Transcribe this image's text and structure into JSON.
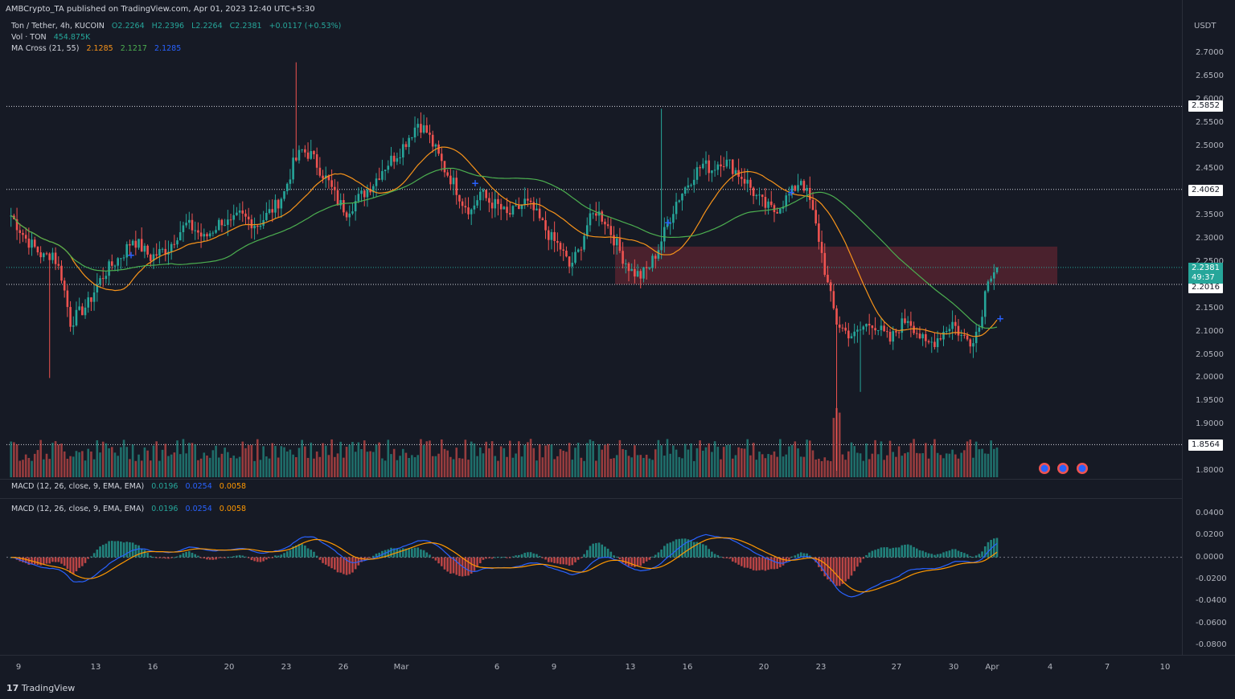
{
  "header": {
    "publisher": "AMBCrypto_TA published on TradingView.com, Apr 01, 2023 12:40 UTC+5:30"
  },
  "legend": {
    "symbol": "Ton / Tether, 4h, KUCOIN",
    "o": "O2.2264",
    "h": "H2.2396",
    "l": "L2.2264",
    "c": "C2.2381",
    "chg": "+0.0117 (+0.53%)",
    "vol_label": "Vol · TON",
    "vol_value": "454.875K",
    "ma_label": "MA Cross (21, 55)",
    "ma_v1": "2.1285",
    "ma_v2": "2.1217",
    "ma_v3": "2.1285",
    "macd_label": "MACD (12, 26, close, 9, EMA, EMA)",
    "macd_v1": "0.0196",
    "macd_v2": "0.0254",
    "macd_v3": "0.0058"
  },
  "axis": {
    "currency": "USDT",
    "price_ticks": [
      "2.7000",
      "2.6500",
      "2.6000",
      "2.5500",
      "2.5000",
      "2.4500",
      "2.3500",
      "2.3000",
      "2.2500",
      "2.1500",
      "2.1000",
      "2.0500",
      "2.0000",
      "1.9500",
      "1.9000",
      "1.8000"
    ],
    "macd_ticks": [
      "0.0400",
      "0.0200",
      "0.0000",
      "-0.0200",
      "-0.0400",
      "-0.0600",
      "-0.0800"
    ],
    "x_ticks": [
      "9",
      "13",
      "16",
      "20",
      "23",
      "26",
      "Mar",
      "6",
      "9",
      "13",
      "16",
      "20",
      "23",
      "27",
      "30",
      "Apr",
      "4",
      "7",
      "10"
    ]
  },
  "levels": {
    "l1": "2.5852",
    "l2": "2.4062",
    "l3": "2.2016",
    "l4": "1.8564",
    "current": "2.2381",
    "countdown": "49:37"
  },
  "colors": {
    "bg": "#161a25",
    "up": "#26a69a",
    "down": "#ef5350",
    "ma_fast": "#f7931a",
    "ma_slow": "#4caf50",
    "macd": "#2962ff",
    "signal": "#ff9800",
    "zone": "#5c2430"
  },
  "footer": {
    "brand": "TradingView"
  },
  "chart_data": {
    "type": "candlestick",
    "title": "Ton / Tether, 4h, KUCOIN",
    "ylim": [
      1.78,
      2.74
    ],
    "close_path": [
      2.36,
      2.33,
      2.3,
      2.28,
      2.26,
      2.27,
      2.22,
      2.12,
      2.14,
      2.16,
      2.2,
      2.23,
      2.25,
      2.27,
      2.3,
      2.28,
      2.26,
      2.27,
      2.28,
      2.31,
      2.33,
      2.32,
      2.3,
      2.32,
      2.34,
      2.33,
      2.35,
      2.34,
      2.33,
      2.35,
      2.37,
      2.4,
      2.46,
      2.49,
      2.48,
      2.45,
      2.42,
      2.38,
      2.36,
      2.38,
      2.4,
      2.42,
      2.45,
      2.47,
      2.49,
      2.52,
      2.55,
      2.53,
      2.49,
      2.45,
      2.42,
      2.38,
      2.36,
      2.4,
      2.38,
      2.37,
      2.35,
      2.36,
      2.38,
      2.36,
      2.33,
      2.3,
      2.28,
      2.24,
      2.27,
      2.33,
      2.36,
      2.34,
      2.3,
      2.26,
      2.23,
      2.22,
      2.24,
      2.28,
      2.33,
      2.38,
      2.41,
      2.44,
      2.46,
      2.45,
      2.47,
      2.46,
      2.44,
      2.42,
      2.39,
      2.37,
      2.36,
      2.38,
      2.4,
      2.43,
      2.38,
      2.3,
      2.2,
      2.12,
      2.1,
      2.09,
      2.11,
      2.12,
      2.1,
      2.08,
      2.11,
      2.13,
      2.1,
      2.07,
      2.08,
      2.1,
      2.12,
      2.09,
      2.08,
      2.11,
      2.22,
      2.24
    ],
    "range_note": "Resistance zone 2.2016 – 2.2800"
  }
}
